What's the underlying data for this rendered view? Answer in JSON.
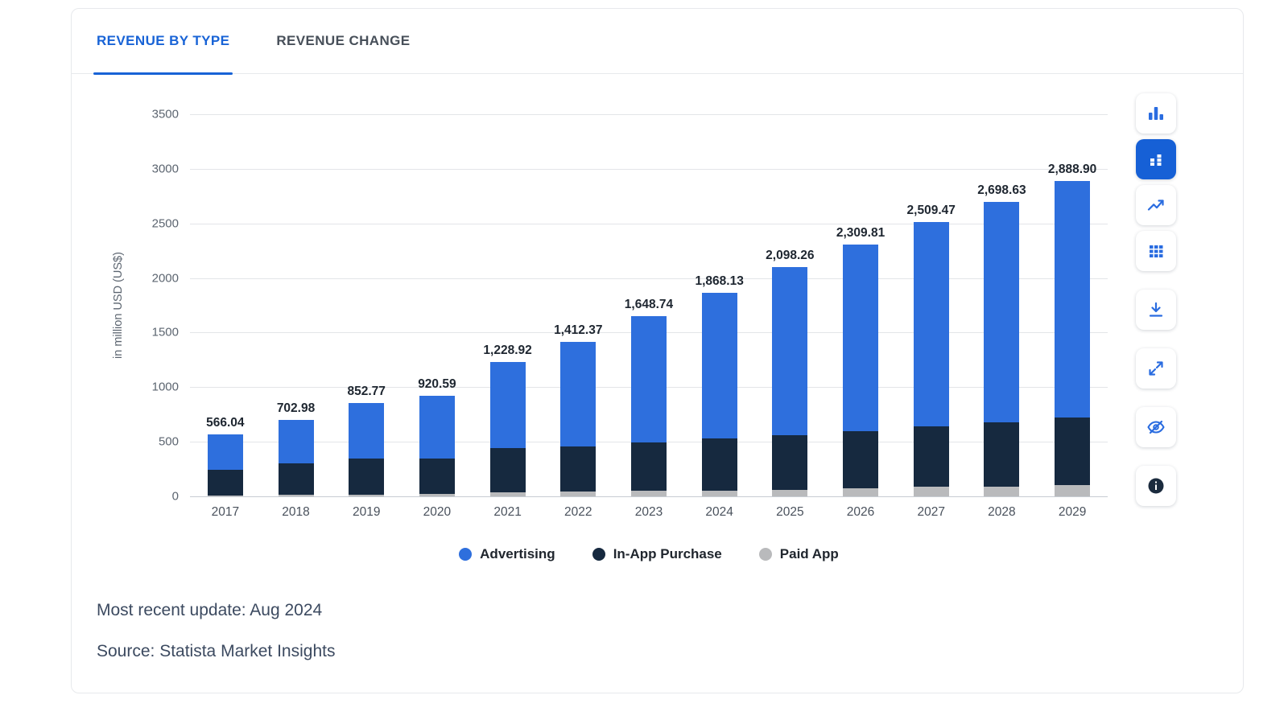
{
  "tabs": [
    {
      "label": "REVENUE BY TYPE",
      "active": true
    },
    {
      "label": "REVENUE CHANGE",
      "active": false
    }
  ],
  "chart_data": {
    "type": "bar",
    "stacked": true,
    "title": "",
    "ylabel": "in million USD (US$)",
    "xlabel": "",
    "ylim": [
      0,
      3500
    ],
    "yticks": [
      0,
      500,
      1000,
      1500,
      2000,
      2500,
      3000,
      3500
    ],
    "grid": "horizontal",
    "legend_position": "bottom",
    "categories": [
      "2017",
      "2018",
      "2019",
      "2020",
      "2021",
      "2022",
      "2023",
      "2024",
      "2025",
      "2026",
      "2027",
      "2028",
      "2029"
    ],
    "series": [
      {
        "name": "Advertising",
        "color": "#2e6fdd",
        "values": [
          321.04,
          402.98,
          502.77,
          570.59,
          788.92,
          952.37,
          1153.74,
          1338.13,
          1538.26,
          1709.81,
          1869.47,
          2023.63,
          2168.9
        ]
      },
      {
        "name": "In-App Purchase",
        "color": "#16293f",
        "values": [
          237,
          288,
          332,
          325,
          405,
          415,
          445,
          475,
          498,
          528,
          555,
          583,
          620
        ]
      },
      {
        "name": "Paid App",
        "color": "#b9babc",
        "values": [
          8,
          12,
          18,
          25,
          35,
          45,
          50,
          55,
          62,
          72,
          85,
          92,
          100
        ]
      }
    ],
    "totals": [
      "566.04",
      "702.98",
      "852.77",
      "920.59",
      "1,228.92",
      "1,412.37",
      "1,648.74",
      "1,868.13",
      "2,098.26",
      "2,309.81",
      "2,509.47",
      "2,698.63",
      "2,888.90"
    ]
  },
  "footer": {
    "update": "Most recent update: Aug 2024",
    "source": "Source: Statista Market Insights"
  },
  "toolbar": {
    "column_chart": "column chart view",
    "stacked_chart": "stacked chart view",
    "line_chart": "line chart view",
    "table_view": "table view",
    "download": "download",
    "fullscreen": "fullscreen",
    "hide": "toggle labels",
    "info": "info"
  },
  "colors": {
    "accent": "#1863d6",
    "active_button": "#1660d6",
    "info_circle": "#1b2b3e"
  }
}
